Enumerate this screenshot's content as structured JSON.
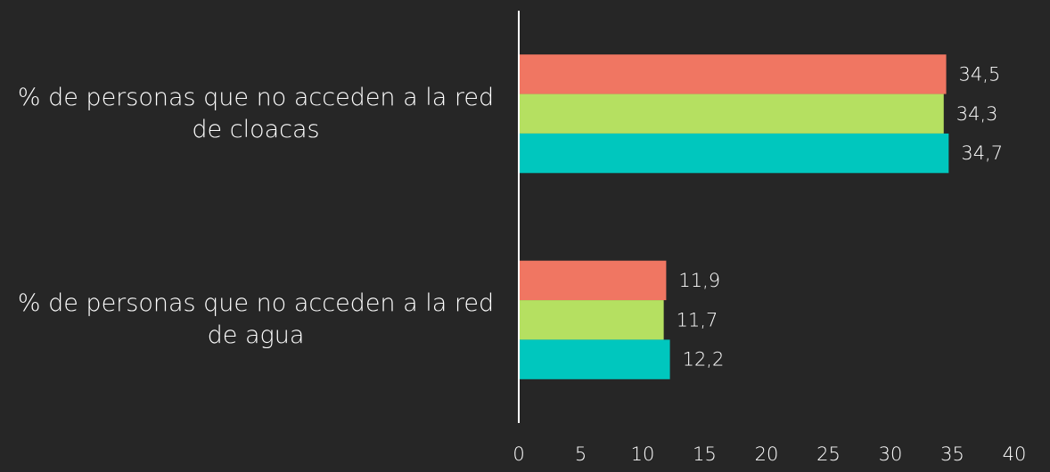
{
  "chart_data": {
    "type": "hbar",
    "categories": [
      "% de personas que no acceden a la red de cloacas",
      "% de personas que no acceden a la red de agua"
    ],
    "series": [
      {
        "color": "#f07662",
        "values": [
          34.5,
          11.9
        ],
        "value_labels": [
          "34,5",
          "11,9"
        ]
      },
      {
        "color": "#b5e061",
        "values": [
          34.3,
          11.7
        ],
        "value_labels": [
          "34,3",
          "11,7"
        ]
      },
      {
        "color": "#00c7be",
        "values": [
          34.7,
          12.2
        ],
        "value_labels": [
          "34,7",
          "12,2"
        ]
      }
    ],
    "xlim": [
      0,
      40
    ],
    "xticks": [
      0,
      5,
      10,
      15,
      20,
      25,
      30,
      35,
      40
    ],
    "grid": false
  }
}
